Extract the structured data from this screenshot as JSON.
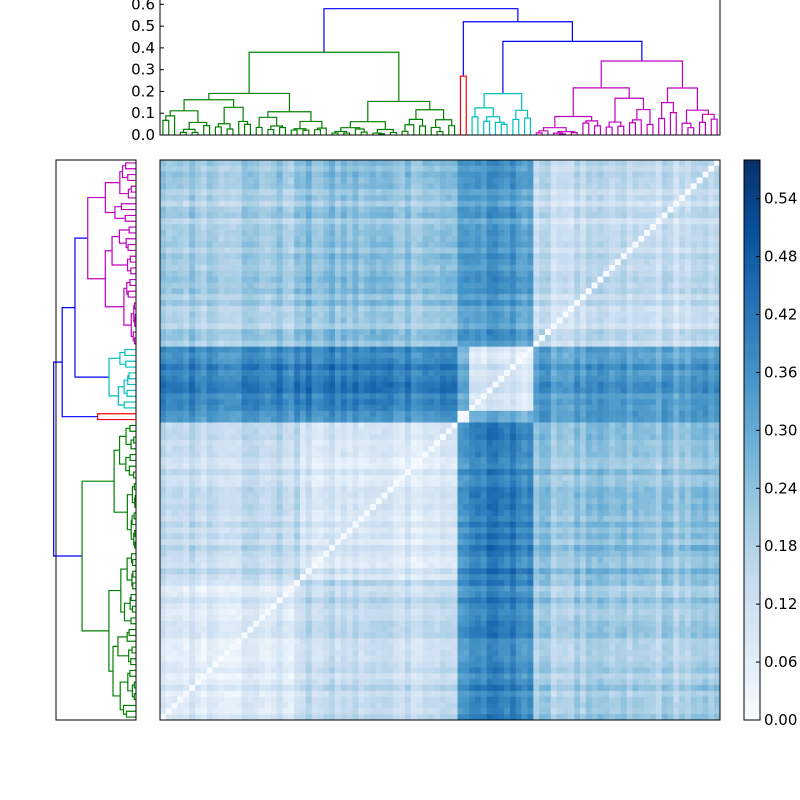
{
  "chart_data": [
    {
      "type": "dendrogram",
      "orientation": "top",
      "ylim": [
        0,
        0.62
      ],
      "yticks": [
        "0.0",
        "0.1",
        "0.2",
        "0.3",
        "0.4",
        "0.5",
        "0.6"
      ],
      "ytick_values": [
        0.0,
        0.1,
        0.2,
        0.3,
        0.4,
        0.5,
        0.6
      ],
      "leaf_count": 96,
      "clusters": [
        {
          "color": "#008000",
          "leaf_range": [
            0,
            51
          ],
          "merge_height": 0.38
        },
        {
          "color": "#ff0000",
          "leaf_range": [
            51,
            53
          ],
          "merge_height": 0.27
        },
        {
          "color": "#00bfbf",
          "leaf_range": [
            53,
            64
          ],
          "merge_height": 0.19
        },
        {
          "color": "#bf00bf",
          "leaf_range": [
            64,
            96
          ],
          "merge_height": 0.34
        }
      ],
      "links_color": "#0000ff",
      "links": [
        {
          "left": "cluster-3",
          "right": "cluster-4",
          "height": 0.43
        },
        {
          "left": "cluster-2",
          "right": "link-1",
          "height": 0.52
        },
        {
          "left": "cluster-1",
          "right": "link-2",
          "height": 0.58
        }
      ]
    },
    {
      "type": "dendrogram",
      "orientation": "left",
      "mirror_of": "top",
      "leaf_count": 96
    },
    {
      "type": "heatmap",
      "rows": 96,
      "cols": 96,
      "value_range": [
        0.0,
        0.58
      ],
      "diagonal_value": 0.0,
      "block_boundaries": [
        0,
        24,
        51,
        53,
        64,
        96
      ],
      "block_means": [
        [
          0.09,
          0.15,
          0.36,
          0.39,
          0.2
        ],
        [
          0.15,
          0.09,
          0.36,
          0.4,
          0.23
        ],
        [
          0.36,
          0.36,
          0.04,
          0.3,
          0.34
        ],
        [
          0.39,
          0.4,
          0.3,
          0.09,
          0.33
        ],
        [
          0.2,
          0.23,
          0.34,
          0.33,
          0.13
        ]
      ],
      "colormap": [
        "#f7fbff",
        "#deebf7",
        "#c6dbef",
        "#9ecae1",
        "#6baed6",
        "#4292c6",
        "#2171b5",
        "#08519c",
        "#08306b"
      ]
    },
    {
      "type": "colorbar",
      "vmin": 0.0,
      "vmax": 0.58,
      "ticks": [
        "0.00",
        "0.06",
        "0.12",
        "0.18",
        "0.24",
        "0.30",
        "0.36",
        "0.42",
        "0.48",
        "0.54"
      ],
      "tick_values": [
        0.0,
        0.06,
        0.12,
        0.18,
        0.24,
        0.3,
        0.36,
        0.42,
        0.48,
        0.54
      ]
    }
  ]
}
